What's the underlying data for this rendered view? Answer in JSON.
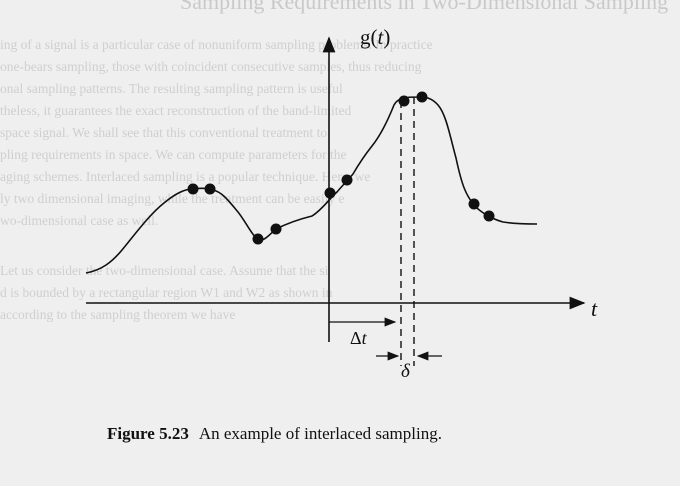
{
  "figure": {
    "y_axis_label_prefix": "g(",
    "y_axis_label_var": "t",
    "y_axis_label_suffix": ")",
    "x_axis_label": "t",
    "delta_t_prefix": "Δ",
    "delta_t_var": "t",
    "delta_label": "δ"
  },
  "caption": {
    "number": "Figure 5.23",
    "text": "An example of interlaced sampling."
  },
  "bleed_through": {
    "heading": "Sampling Requirements in Two-Dimensional Sampling",
    "lines": [
      "ing of a signal is a particular case of nonuniform sampling problems. In practice",
      "one-bears sampling, those with coincident consecutive samples, thus reducing",
      "onal sampling patterns. The resulting sampling pattern is useful",
      "theless, it guarantees the exact reconstruction of the band-limited",
      "space signal. We shall see that this conventional treatment to",
      "pling requirements in space. We can compute parameters for the",
      "aging schemes. Interlaced sampling is a popular technique. Here, we",
      "ly two dimensional imaging, while the treatment can be easily e",
      "wo-dimensional case as well.",
      "Let us consider the two-dimensional case. Assume that the si",
      "d is bounded by a rectangular region W1 and W2 as shown in",
      "according to the sampling theorem we have"
    ]
  }
}
